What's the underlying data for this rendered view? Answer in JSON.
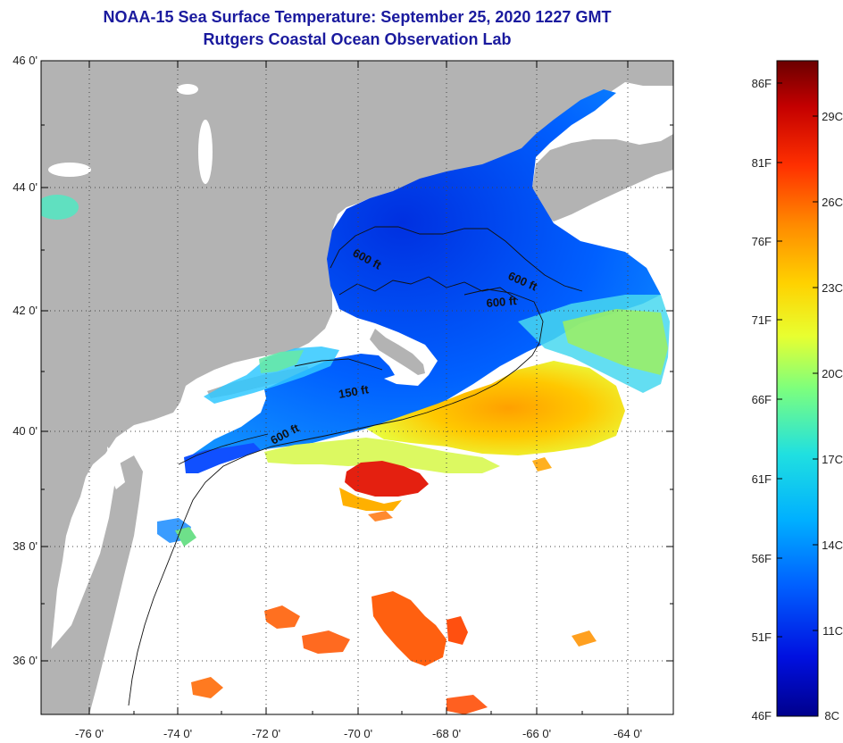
{
  "title": {
    "line1": "NOAA-15 Sea Surface Temperature:  September 25, 2020 1227 GMT",
    "line2": "Rutgers Coastal Ocean Observation Lab"
  },
  "map": {
    "lat_labels": [
      "46 0'",
      "44 0'",
      "42 0'",
      "40 0'",
      "38 0'",
      "36 0'"
    ],
    "lon_labels": [
      "-76 0'",
      "-74 0'",
      "-72 0'",
      "-70 0'",
      "-68 0'",
      "-66 0'",
      "-64 0'"
    ],
    "contour_labels": [
      "600 ft",
      "600 ft",
      "600 ft",
      "150 ft",
      "600 ft"
    ]
  },
  "colorbar": {
    "fahrenheit": [
      "86F",
      "81F",
      "76F",
      "71F",
      "66F",
      "61F",
      "56F",
      "51F",
      "46F"
    ],
    "celsius": [
      "29C",
      "26C",
      "23C",
      "20C",
      "17C",
      "14C",
      "11C",
      "8C"
    ],
    "colors": [
      "#6b0000",
      "#c40000",
      "#ff3000",
      "#ff8a00",
      "#ffd200",
      "#e8ff30",
      "#7dff7d",
      "#20e0e0",
      "#00b0ff",
      "#0060ff",
      "#0010e0",
      "#00008c"
    ]
  }
}
